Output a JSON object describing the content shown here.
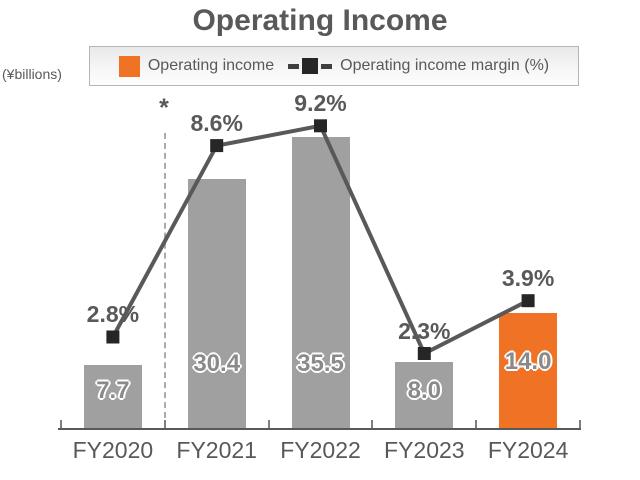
{
  "title": "Operating Income",
  "y_axis_note": "(¥billions)",
  "legend": {
    "bar_label": "Operating income",
    "line_label": "Operating income margin (%)"
  },
  "separator": {
    "marker": "*",
    "between": [
      "FY2020",
      "FY2021"
    ]
  },
  "colors": {
    "bar_gray": "#A0A0A0",
    "bar_highlight_orange": "#F07224",
    "line": "#595959",
    "marker": "#262626",
    "text": "#595959",
    "dashed_separator": "#ababab"
  },
  "chart_data": {
    "type": "bar",
    "subtype": "bar-line-combo",
    "categories": [
      "FY2020",
      "FY2021",
      "FY2022",
      "FY2023",
      "FY2024"
    ],
    "series": [
      {
        "name": "Operating income",
        "type": "bar",
        "unit": "¥billions",
        "values": [
          7.7,
          30.4,
          35.5,
          8.0,
          14.0
        ],
        "highlight_index": 4
      },
      {
        "name": "Operating income margin (%)",
        "type": "line",
        "unit": "%",
        "values": [
          2.8,
          8.6,
          9.2,
          2.3,
          3.9
        ]
      }
    ],
    "bar_value_labels": [
      "7.7",
      "30.4",
      "35.5",
      "8.0",
      "14.0"
    ],
    "line_value_labels": [
      "2.8%",
      "8.6%",
      "9.2%",
      "2.3%",
      "3.9%"
    ],
    "title": "Operating Income",
    "ylabel": "(¥billions)",
    "grid": false,
    "legend_position": "top"
  }
}
